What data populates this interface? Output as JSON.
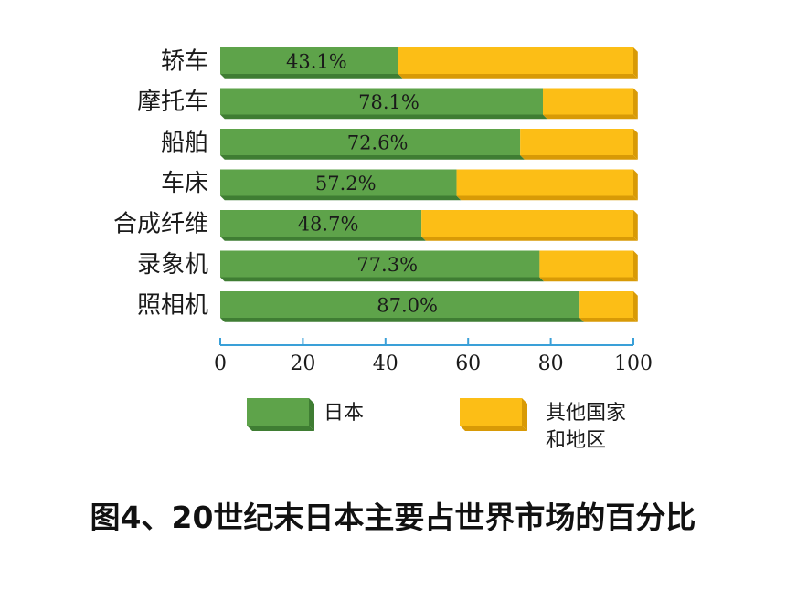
{
  "caption": "图4、20世纪末日本主要占世界市场的百分比",
  "colors": {
    "japan": "#5ea34a",
    "japan_shade": "#3f7d33",
    "other": "#fcbe16",
    "other_shade": "#d89a06",
    "axis": "#3aa0d8"
  },
  "chart_data": {
    "type": "bar",
    "orientation": "horizontal",
    "stacked": true,
    "categories": [
      "轿车",
      "摩托车",
      "船舶",
      "车床",
      "合成纤维",
      "录象机",
      "照相机"
    ],
    "series": [
      {
        "name": "日本",
        "values": [
          43.1,
          78.1,
          72.6,
          57.2,
          48.7,
          77.3,
          87.0
        ]
      },
      {
        "name": "其他国家和地区",
        "values": [
          56.9,
          21.9,
          27.4,
          42.8,
          51.3,
          22.7,
          13.0
        ]
      }
    ],
    "data_labels": [
      "43.1%",
      "78.1%",
      "72.6%",
      "57.2%",
      "48.7%",
      "77.3%",
      "87.0%"
    ],
    "x_ticks": [
      "0",
      "20",
      "40",
      "60",
      "80",
      "100"
    ],
    "xlim": [
      0,
      100
    ],
    "legend": [
      {
        "label": "日本"
      },
      {
        "label_lines": [
          "其他国家",
          "和地区"
        ]
      }
    ],
    "legend_position": "bottom",
    "grid": false
  }
}
